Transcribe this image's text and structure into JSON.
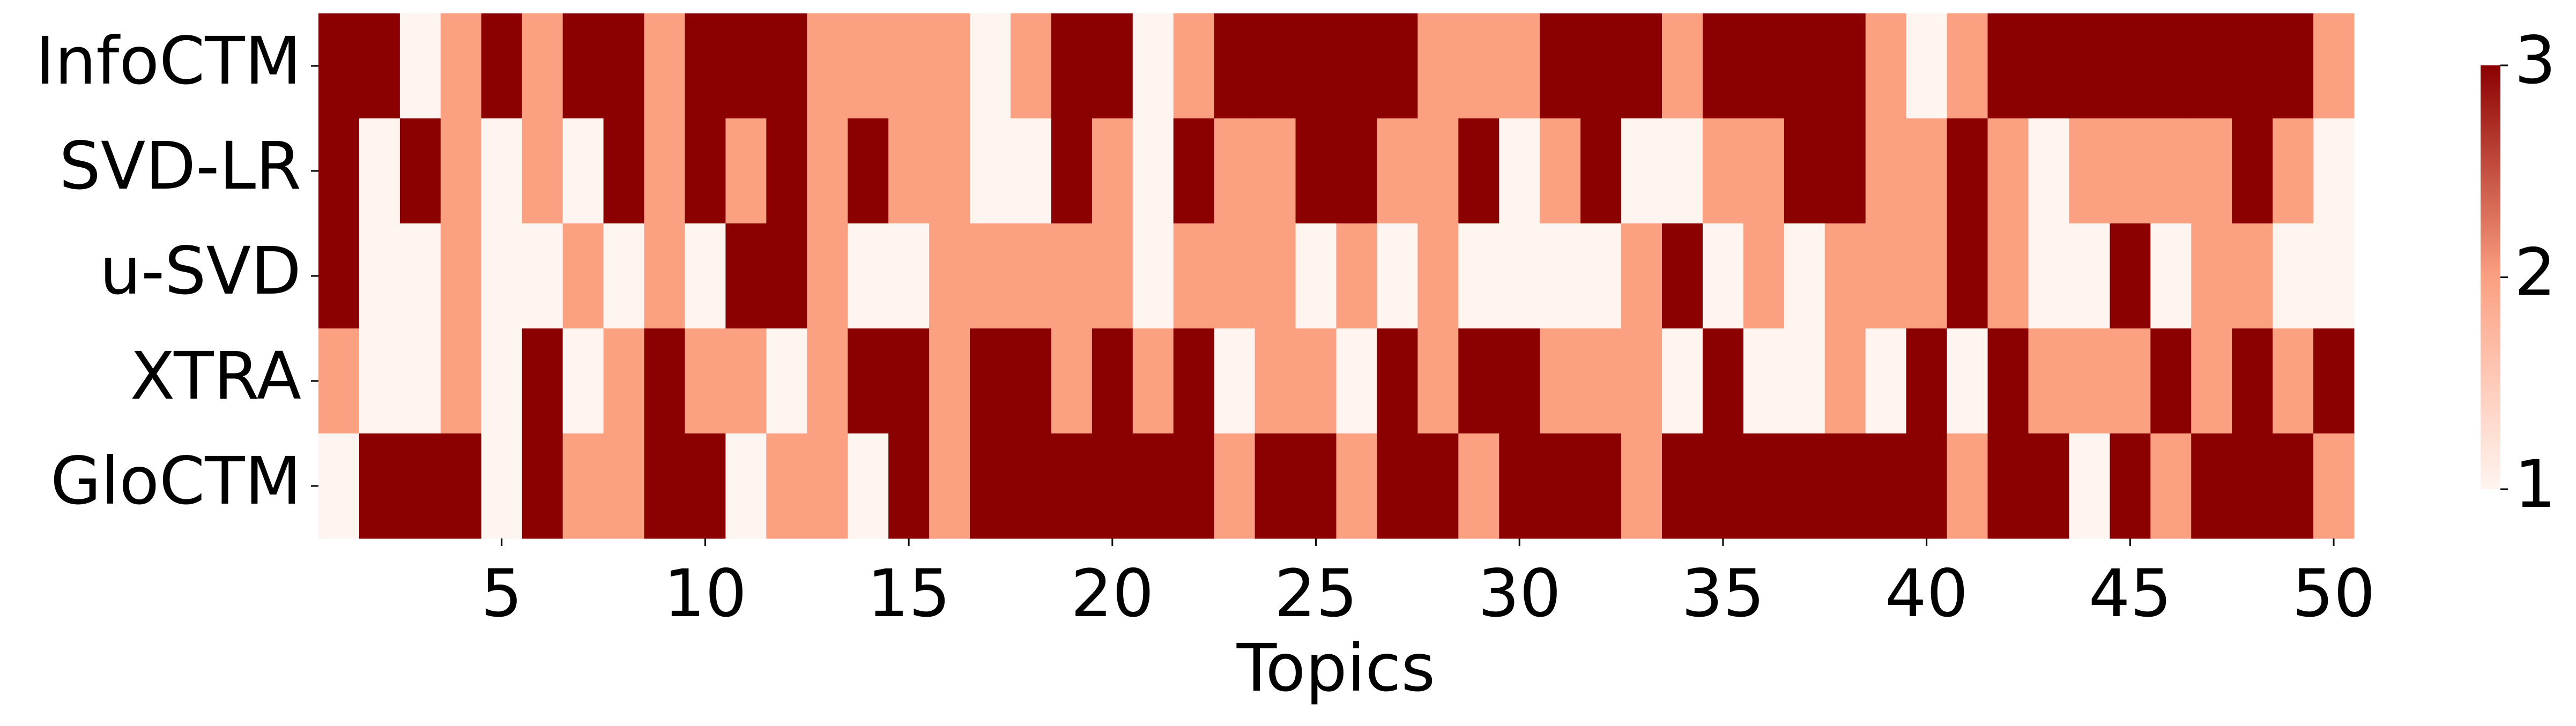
{
  "chart_data": {
    "type": "heatmap",
    "xlabel": "Topics",
    "categories": [
      null,
      null,
      null,
      null,
      5,
      null,
      null,
      null,
      null,
      10,
      null,
      null,
      null,
      null,
      15,
      null,
      null,
      null,
      null,
      20,
      null,
      null,
      null,
      null,
      25,
      null,
      null,
      null,
      null,
      30,
      null,
      null,
      null,
      null,
      35,
      null,
      null,
      null,
      null,
      40,
      null,
      null,
      null,
      null,
      45,
      null,
      null,
      null,
      null,
      50
    ],
    "rows": [
      "InfoCTM",
      "SVD-LR",
      "u-SVD",
      "XTRA",
      "GloCTM"
    ],
    "values": [
      [
        3,
        3,
        1,
        2,
        3,
        2,
        3,
        3,
        2,
        3,
        3,
        3,
        2,
        2,
        2,
        2,
        1,
        2,
        3,
        3,
        1,
        2,
        3,
        3,
        3,
        3,
        3,
        2,
        2,
        2,
        3,
        3,
        3,
        2,
        3,
        3,
        3,
        3,
        2,
        1,
        2,
        3,
        3,
        3,
        3,
        3,
        3,
        3,
        3,
        2
      ],
      [
        3,
        1,
        3,
        2,
        1,
        2,
        1,
        3,
        2,
        3,
        2,
        3,
        2,
        3,
        2,
        2,
        1,
        1,
        3,
        2,
        1,
        3,
        2,
        2,
        3,
        3,
        2,
        2,
        3,
        1,
        2,
        3,
        1,
        1,
        2,
        2,
        3,
        3,
        2,
        2,
        3,
        2,
        1,
        2,
        2,
        2,
        2,
        3,
        2,
        1
      ],
      [
        3,
        1,
        1,
        2,
        1,
        1,
        2,
        1,
        2,
        1,
        3,
        3,
        2,
        1,
        1,
        2,
        2,
        2,
        2,
        2,
        1,
        2,
        2,
        2,
        1,
        2,
        1,
        2,
        1,
        1,
        1,
        1,
        2,
        3,
        1,
        2,
        1,
        2,
        2,
        2,
        3,
        2,
        1,
        1,
        3,
        1,
        2,
        2,
        1,
        1
      ],
      [
        2,
        1,
        1,
        2,
        1,
        3,
        1,
        2,
        3,
        2,
        2,
        1,
        2,
        3,
        3,
        2,
        3,
        3,
        2,
        3,
        2,
        3,
        1,
        2,
        2,
        1,
        3,
        2,
        3,
        3,
        2,
        2,
        2,
        1,
        3,
        1,
        1,
        2,
        1,
        3,
        1,
        3,
        2,
        2,
        2,
        3,
        2,
        3,
        2,
        3
      ],
      [
        1,
        3,
        3,
        3,
        1,
        3,
        2,
        2,
        3,
        3,
        1,
        2,
        2,
        1,
        3,
        2,
        3,
        3,
        3,
        3,
        3,
        3,
        2,
        3,
        3,
        2,
        3,
        3,
        2,
        3,
        3,
        3,
        2,
        3,
        3,
        3,
        3,
        3,
        3,
        3,
        2,
        3,
        3,
        1,
        3,
        2,
        3,
        3,
        3,
        2
      ]
    ],
    "colorscale": [
      "#fff5f0",
      "#fca082",
      "#8b0000"
    ],
    "colorbar_lim": [
      1,
      3
    ],
    "colorbar_ticks": [
      1,
      2,
      3
    ]
  }
}
